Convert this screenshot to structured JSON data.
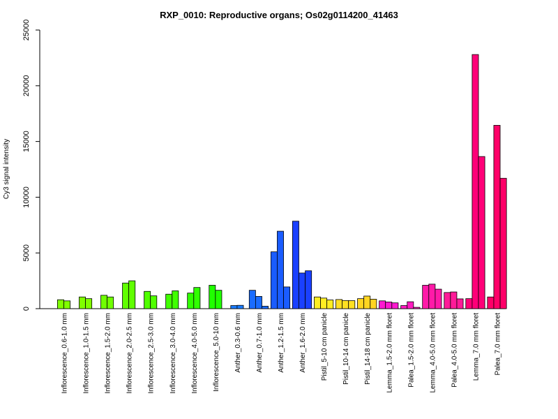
{
  "chart_data": {
    "type": "bar",
    "title": "RXP_0010: Reproductive organs; Os02g0114200_41463",
    "xlabel": "",
    "ylabel": "Cy3 signal intensity",
    "ylim": [
      0,
      25000
    ],
    "yticks": [
      0,
      5000,
      10000,
      15000,
      20000,
      25000
    ],
    "grid": false,
    "groups": [
      {
        "label": "Inflorescence_0.6-1.0 mm",
        "color": "#80ff00",
        "values": [
          800,
          700
        ]
      },
      {
        "label": "Inflorescence_1.0-1.5 mm",
        "color": "#80ff00",
        "values": [
          1050,
          900
        ]
      },
      {
        "label": "Inflorescence_1.5-2.0 mm",
        "color": "#70ff00",
        "values": [
          1200,
          1050
        ]
      },
      {
        "label": "Inflorescence_2.0-2.5 mm",
        "color": "#60ff00",
        "values": [
          2300,
          2500
        ]
      },
      {
        "label": "Inflorescence_2.5-3.0 mm",
        "color": "#50ff00",
        "values": [
          1550,
          1150
        ]
      },
      {
        "label": "Inflorescence_3.0-4.0 mm",
        "color": "#40ff00",
        "values": [
          1300,
          1600
        ]
      },
      {
        "label": "Inflorescence_4.0-5.0 mm",
        "color": "#30ff00",
        "values": [
          1400,
          1900
        ]
      },
      {
        "label": "Inflorescence_5.0-10 mm",
        "color": "#20ff00",
        "values": [
          2100,
          1650
        ]
      },
      {
        "label": "Anther_0.3-0.6 mm",
        "color": "#1a7cff",
        "values": [
          280,
          300
        ]
      },
      {
        "label": "Anther_0.7-1.0 mm",
        "color": "#1a6cff",
        "values": [
          1650,
          1100,
          220
        ]
      },
      {
        "label": "Anther_1.2-1.5 mm",
        "color": "#1a5cff",
        "values": [
          5100,
          6950,
          1950
        ]
      },
      {
        "label": "Anther_1.6-2.0 mm",
        "color": "#1a40ff",
        "values": [
          7850,
          3200,
          3400
        ]
      },
      {
        "label": "Pistil_5-10 cm panicle",
        "color": "#ffee22",
        "values": [
          1050,
          950,
          780
        ]
      },
      {
        "label": "Pistil_10-14 cm panicle",
        "color": "#ffe022",
        "values": [
          820,
          730,
          720
        ]
      },
      {
        "label": "Pistil_14-18 cm panicle",
        "color": "#ffd522",
        "values": [
          900,
          1130,
          850
        ]
      },
      {
        "label": "Lemma_1.5-2.0 mm floret",
        "color": "#ff1ad0",
        "values": [
          700,
          600,
          520
        ]
      },
      {
        "label": "Palea_1.5-2.0 mm floret",
        "color": "#ff1ac0",
        "values": [
          280,
          620,
          120
        ]
      },
      {
        "label": "Lemma_4.0-5.0 mm floret",
        "color": "#ff1aa8",
        "values": [
          2100,
          2200,
          1750
        ]
      },
      {
        "label": "Palea_4.0-5.0 mm floret",
        "color": "#ff1a98",
        "values": [
          1450,
          1500,
          880
        ]
      },
      {
        "label": "Lemma_7.0 mm floret",
        "color": "#ff0078",
        "values": [
          900,
          22800,
          13650
        ]
      },
      {
        "label": "Palea_7.0 mm floret",
        "color": "#ff0068",
        "values": [
          1050,
          16450,
          11700
        ]
      }
    ]
  }
}
